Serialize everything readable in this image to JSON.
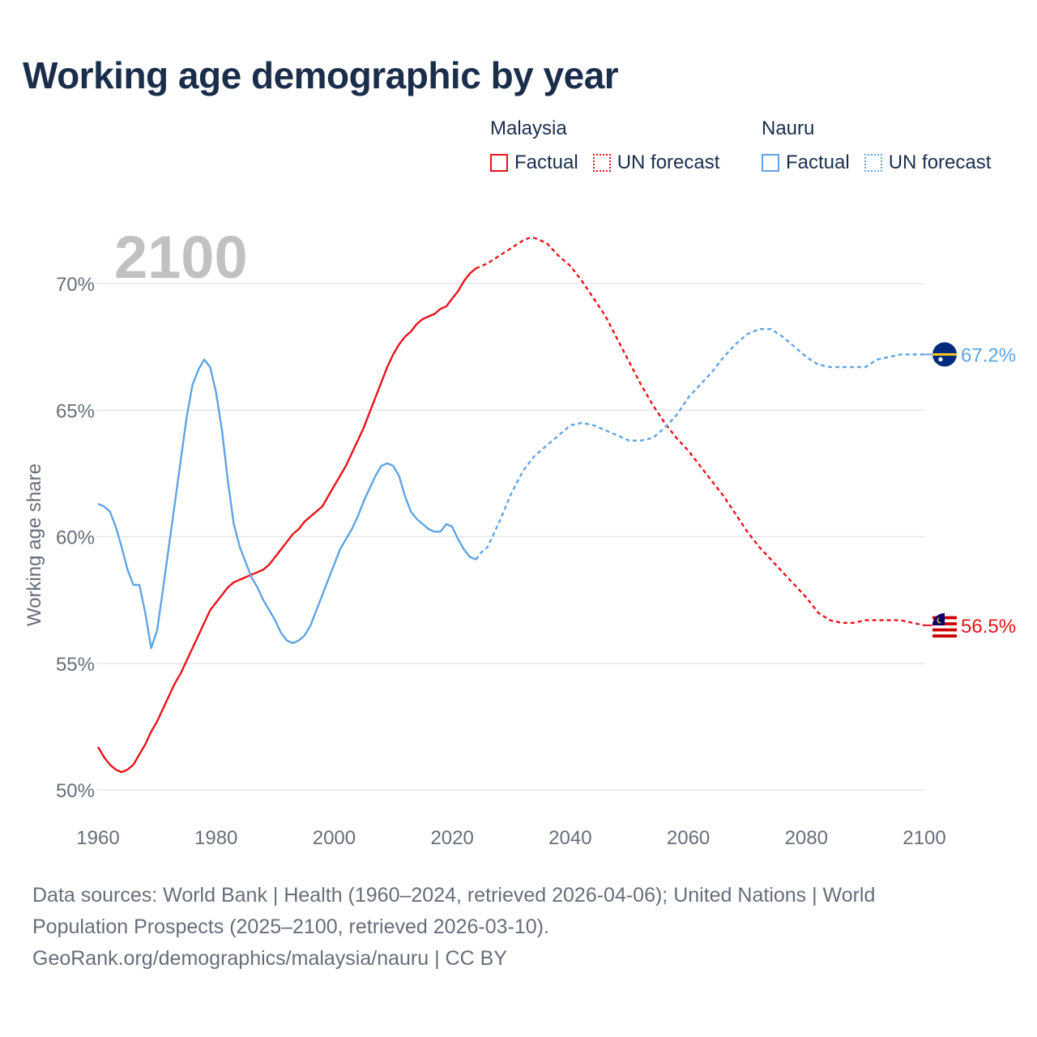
{
  "title": "Working age demographic by year",
  "legend": {
    "groups": [
      {
        "country": "Malaysia",
        "factual_label": "Factual",
        "forecast_label": "UN forecast",
        "color": "#e8131b"
      },
      {
        "country": "Nauru",
        "factual_label": "Factual",
        "forecast_label": "UN forecast",
        "color": "#5fa4e3"
      }
    ]
  },
  "chart_data": {
    "type": "line",
    "title": "Working age demographic by year",
    "xlabel": "",
    "ylabel": "Working age share",
    "xlim": [
      1960,
      2100
    ],
    "ylim": [
      50,
      72
    ],
    "x_ticks": [
      1960,
      1980,
      2000,
      2020,
      2040,
      2060,
      2080,
      2100
    ],
    "y_ticks": [
      50,
      55,
      60,
      65,
      70
    ],
    "y_tick_labels": [
      "50%",
      "55%",
      "60%",
      "65%",
      "70%"
    ],
    "x_tick_labels": [
      "1960",
      "1980",
      "2000",
      "2020",
      "2040",
      "2060",
      "2080",
      "2100"
    ],
    "year_watermark": "2100",
    "forecast_start": 2024,
    "series": [
      {
        "name": "Malaysia",
        "color": "#e8131b",
        "end_label": "56.5%",
        "points": [
          [
            1960,
            51.7
          ],
          [
            1961,
            51.3
          ],
          [
            1962,
            51.0
          ],
          [
            1963,
            50.8
          ],
          [
            1964,
            50.7
          ],
          [
            1965,
            50.8
          ],
          [
            1966,
            51.0
          ],
          [
            1967,
            51.4
          ],
          [
            1968,
            51.8
          ],
          [
            1969,
            52.3
          ],
          [
            1970,
            52.7
          ],
          [
            1971,
            53.2
          ],
          [
            1972,
            53.7
          ],
          [
            1973,
            54.2
          ],
          [
            1974,
            54.6
          ],
          [
            1975,
            55.1
          ],
          [
            1976,
            55.6
          ],
          [
            1977,
            56.1
          ],
          [
            1978,
            56.6
          ],
          [
            1979,
            57.1
          ],
          [
            1980,
            57.4
          ],
          [
            1981,
            57.7
          ],
          [
            1982,
            58.0
          ],
          [
            1983,
            58.2
          ],
          [
            1984,
            58.3
          ],
          [
            1985,
            58.4
          ],
          [
            1986,
            58.5
          ],
          [
            1987,
            58.6
          ],
          [
            1988,
            58.7
          ],
          [
            1989,
            58.9
          ],
          [
            1990,
            59.2
          ],
          [
            1991,
            59.5
          ],
          [
            1992,
            59.8
          ],
          [
            1993,
            60.1
          ],
          [
            1994,
            60.3
          ],
          [
            1995,
            60.6
          ],
          [
            1996,
            60.8
          ],
          [
            1997,
            61.0
          ],
          [
            1998,
            61.2
          ],
          [
            1999,
            61.6
          ],
          [
            2000,
            62.0
          ],
          [
            2001,
            62.4
          ],
          [
            2002,
            62.8
          ],
          [
            2003,
            63.3
          ],
          [
            2004,
            63.8
          ],
          [
            2005,
            64.3
          ],
          [
            2006,
            64.9
          ],
          [
            2007,
            65.5
          ],
          [
            2008,
            66.1
          ],
          [
            2009,
            66.7
          ],
          [
            2010,
            67.2
          ],
          [
            2011,
            67.6
          ],
          [
            2012,
            67.9
          ],
          [
            2013,
            68.1
          ],
          [
            2014,
            68.4
          ],
          [
            2015,
            68.6
          ],
          [
            2016,
            68.7
          ],
          [
            2017,
            68.8
          ],
          [
            2018,
            69.0
          ],
          [
            2019,
            69.1
          ],
          [
            2020,
            69.4
          ],
          [
            2021,
            69.7
          ],
          [
            2022,
            70.1
          ],
          [
            2023,
            70.4
          ],
          [
            2024,
            70.6
          ],
          [
            2026,
            70.8
          ],
          [
            2028,
            71.1
          ],
          [
            2030,
            71.4
          ],
          [
            2032,
            71.7
          ],
          [
            2033,
            71.8
          ],
          [
            2034,
            71.8
          ],
          [
            2036,
            71.6
          ],
          [
            2038,
            71.1
          ],
          [
            2040,
            70.7
          ],
          [
            2042,
            70.1
          ],
          [
            2044,
            69.4
          ],
          [
            2046,
            68.7
          ],
          [
            2048,
            67.8
          ],
          [
            2050,
            66.9
          ],
          [
            2052,
            66.0
          ],
          [
            2054,
            65.2
          ],
          [
            2056,
            64.5
          ],
          [
            2058,
            63.9
          ],
          [
            2060,
            63.4
          ],
          [
            2062,
            62.8
          ],
          [
            2064,
            62.2
          ],
          [
            2066,
            61.6
          ],
          [
            2068,
            60.9
          ],
          [
            2070,
            60.2
          ],
          [
            2072,
            59.6
          ],
          [
            2074,
            59.1
          ],
          [
            2076,
            58.6
          ],
          [
            2078,
            58.1
          ],
          [
            2080,
            57.6
          ],
          [
            2082,
            57.0
          ],
          [
            2084,
            56.7
          ],
          [
            2086,
            56.6
          ],
          [
            2088,
            56.6
          ],
          [
            2090,
            56.7
          ],
          [
            2094,
            56.7
          ],
          [
            2096,
            56.7
          ],
          [
            2098,
            56.6
          ],
          [
            2100,
            56.5
          ]
        ]
      },
      {
        "name": "Nauru",
        "color": "#5fa4e3",
        "end_label": "67.2%",
        "points": [
          [
            1960,
            61.3
          ],
          [
            1961,
            61.2
          ],
          [
            1962,
            61.0
          ],
          [
            1963,
            60.4
          ],
          [
            1964,
            59.6
          ],
          [
            1965,
            58.7
          ],
          [
            1966,
            58.1
          ],
          [
            1967,
            58.1
          ],
          [
            1968,
            57.0
          ],
          [
            1969,
            55.6
          ],
          [
            1970,
            56.3
          ],
          [
            1971,
            57.9
          ],
          [
            1972,
            59.6
          ],
          [
            1973,
            61.3
          ],
          [
            1974,
            63.0
          ],
          [
            1975,
            64.7
          ],
          [
            1976,
            66.0
          ],
          [
            1977,
            66.6
          ],
          [
            1978,
            67.0
          ],
          [
            1979,
            66.7
          ],
          [
            1980,
            65.7
          ],
          [
            1981,
            64.2
          ],
          [
            1982,
            62.2
          ],
          [
            1983,
            60.5
          ],
          [
            1984,
            59.6
          ],
          [
            1985,
            59.0
          ],
          [
            1986,
            58.4
          ],
          [
            1987,
            58.0
          ],
          [
            1988,
            57.5
          ],
          [
            1989,
            57.1
          ],
          [
            1990,
            56.7
          ],
          [
            1991,
            56.2
          ],
          [
            1992,
            55.9
          ],
          [
            1993,
            55.8
          ],
          [
            1994,
            55.9
          ],
          [
            1995,
            56.1
          ],
          [
            1996,
            56.5
          ],
          [
            1997,
            57.1
          ],
          [
            1998,
            57.7
          ],
          [
            1999,
            58.3
          ],
          [
            2000,
            58.9
          ],
          [
            2001,
            59.5
          ],
          [
            2002,
            59.9
          ],
          [
            2003,
            60.3
          ],
          [
            2004,
            60.8
          ],
          [
            2005,
            61.4
          ],
          [
            2006,
            61.9
          ],
          [
            2007,
            62.4
          ],
          [
            2008,
            62.8
          ],
          [
            2009,
            62.9
          ],
          [
            2010,
            62.8
          ],
          [
            2011,
            62.4
          ],
          [
            2012,
            61.6
          ],
          [
            2013,
            61.0
          ],
          [
            2014,
            60.7
          ],
          [
            2015,
            60.5
          ],
          [
            2016,
            60.3
          ],
          [
            2017,
            60.2
          ],
          [
            2018,
            60.2
          ],
          [
            2019,
            60.5
          ],
          [
            2020,
            60.4
          ],
          [
            2021,
            59.9
          ],
          [
            2022,
            59.5
          ],
          [
            2023,
            59.2
          ],
          [
            2024,
            59.1
          ],
          [
            2025,
            59.4
          ],
          [
            2026,
            59.6
          ],
          [
            2028,
            60.6
          ],
          [
            2030,
            61.7
          ],
          [
            2032,
            62.6
          ],
          [
            2034,
            63.2
          ],
          [
            2036,
            63.6
          ],
          [
            2038,
            64.0
          ],
          [
            2040,
            64.4
          ],
          [
            2042,
            64.5
          ],
          [
            2044,
            64.4
          ],
          [
            2046,
            64.2
          ],
          [
            2048,
            64.0
          ],
          [
            2050,
            63.8
          ],
          [
            2052,
            63.8
          ],
          [
            2054,
            63.9
          ],
          [
            2056,
            64.3
          ],
          [
            2058,
            64.8
          ],
          [
            2060,
            65.5
          ],
          [
            2062,
            66.0
          ],
          [
            2064,
            66.5
          ],
          [
            2066,
            67.1
          ],
          [
            2068,
            67.6
          ],
          [
            2070,
            68.0
          ],
          [
            2072,
            68.2
          ],
          [
            2074,
            68.2
          ],
          [
            2076,
            67.9
          ],
          [
            2078,
            67.5
          ],
          [
            2080,
            67.1
          ],
          [
            2082,
            66.8
          ],
          [
            2084,
            66.7
          ],
          [
            2086,
            66.7
          ],
          [
            2088,
            66.7
          ],
          [
            2090,
            66.7
          ],
          [
            2092,
            67.0
          ],
          [
            2094,
            67.1
          ],
          [
            2096,
            67.2
          ],
          [
            2098,
            67.2
          ],
          [
            2100,
            67.2
          ]
        ]
      }
    ]
  },
  "source": {
    "line1": "Data sources: World Bank | Health (1960–2024, retrieved 2026-04-06); United Nations | World",
    "line2": "Population Prospects (2025–2100, retrieved 2026-03-10).",
    "line3": "GeoRank.org/demographics/malaysia/nauru | CC BY"
  }
}
